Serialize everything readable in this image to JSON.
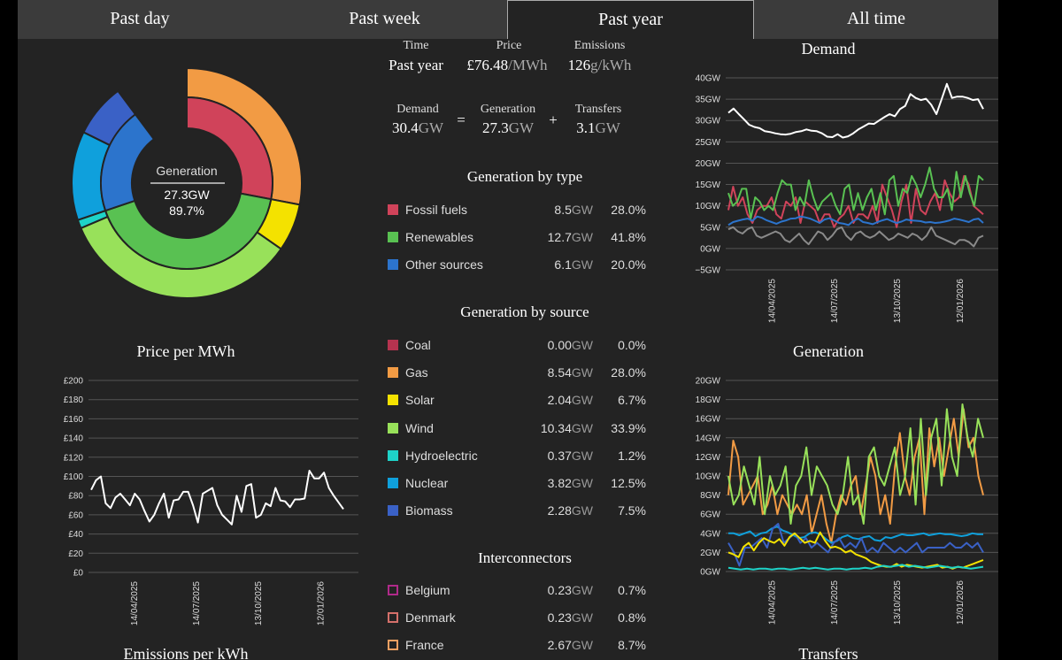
{
  "tabs": [
    {
      "label": "Past day"
    },
    {
      "label": "Past week"
    },
    {
      "label": "Past year"
    },
    {
      "label": "All time"
    }
  ],
  "summary": {
    "time_label": "Time",
    "time_value": "Past year",
    "price_label": "Price",
    "price_value": "£76.48",
    "price_unit": "/MWh",
    "emissions_label": "Emissions",
    "emissions_value": "126",
    "emissions_unit": "g/kWh",
    "demand_label": "Demand",
    "demand_value": "30.4",
    "demand_unit": "GW",
    "equals": "=",
    "generation_label": "Generation",
    "generation_value": "27.3",
    "generation_unit": "GW",
    "plus": "+",
    "transfers_label": "Transfers",
    "transfers_value": "3.1",
    "transfers_unit": "GW"
  },
  "donut": {
    "center_label": "Generation",
    "center_value": "27.3GW",
    "center_pct": "89.7%",
    "inner": [
      {
        "name": "Fossil fuels",
        "fraction": 0.28,
        "color": "#d0435a"
      },
      {
        "name": "Renewables",
        "fraction": 0.418,
        "color": "#59c152"
      },
      {
        "name": "Other sources",
        "fraction": 0.2,
        "color": "#2c74cc"
      }
    ],
    "outer": [
      {
        "name": "Coal",
        "fraction": 0.0,
        "color": "#b5334f"
      },
      {
        "name": "Gas",
        "fraction": 0.28,
        "color": "#f29b44"
      },
      {
        "name": "Solar",
        "fraction": 0.067,
        "color": "#f4e200"
      },
      {
        "name": "Wind",
        "fraction": 0.339,
        "color": "#98e15a"
      },
      {
        "name": "Hydroelectric",
        "fraction": 0.012,
        "color": "#1ed3c8"
      },
      {
        "name": "Nuclear",
        "fraction": 0.125,
        "color": "#0fa0dc"
      },
      {
        "name": "Biomass",
        "fraction": 0.075,
        "color": "#3a61c6"
      }
    ]
  },
  "by_type": {
    "title": "Generation by type",
    "rows": [
      {
        "name": "Fossil fuels",
        "value": "8.5",
        "unit": "GW",
        "pct": "28.0%",
        "color": "#d0435a"
      },
      {
        "name": "Renewables",
        "value": "12.7",
        "unit": "GW",
        "pct": "41.8%",
        "color": "#59c152"
      },
      {
        "name": "Other sources",
        "value": "6.1",
        "unit": "GW",
        "pct": "20.0%",
        "color": "#2c74cc"
      }
    ]
  },
  "by_source": {
    "title": "Generation by source",
    "rows": [
      {
        "name": "Coal",
        "value": "0.00",
        "unit": "GW",
        "pct": "0.0%",
        "color": "#b5334f"
      },
      {
        "name": "Gas",
        "value": "8.54",
        "unit": "GW",
        "pct": "28.0%",
        "color": "#f29b44"
      },
      {
        "name": "Solar",
        "value": "2.04",
        "unit": "GW",
        "pct": "6.7%",
        "color": "#f4e200"
      },
      {
        "name": "Wind",
        "value": "10.34",
        "unit": "GW",
        "pct": "33.9%",
        "color": "#98e15a"
      },
      {
        "name": "Hydroelectric",
        "value": "0.37",
        "unit": "GW",
        "pct": "1.2%",
        "color": "#1ed3c8"
      },
      {
        "name": "Nuclear",
        "value": "3.82",
        "unit": "GW",
        "pct": "12.5%",
        "color": "#0fa0dc"
      },
      {
        "name": "Biomass",
        "value": "2.28",
        "unit": "GW",
        "pct": "7.5%",
        "color": "#3a61c6"
      }
    ]
  },
  "interconnectors": {
    "title": "Interconnectors",
    "rows": [
      {
        "name": "Belgium",
        "value": "0.23",
        "unit": "GW",
        "pct": "0.7%",
        "color": "#b02a8a"
      },
      {
        "name": "Denmark",
        "value": "0.23",
        "unit": "GW",
        "pct": "0.8%",
        "color": "#d4706a"
      },
      {
        "name": "France",
        "value": "2.67",
        "unit": "GW",
        "pct": "8.7%",
        "color": "#f2a062"
      }
    ]
  },
  "panels": {
    "price_title": "Price per MWh",
    "emissions_title": "Emissions per kWh",
    "demand_title": "Demand",
    "generation_title": "Generation",
    "transfers_title": "Transfers"
  },
  "chart_data": [
    {
      "type": "line",
      "name": "price",
      "ylim": [
        0,
        200
      ],
      "yticks": [
        "£0",
        "£20",
        "£40",
        "£60",
        "£80",
        "£100",
        "£120",
        "£140",
        "£160",
        "£180",
        "£200"
      ],
      "xticks": [
        "14/04/2025",
        "14/07/2025",
        "13/10/2025",
        "12/01/2026"
      ],
      "series": [
        {
          "color": "#ffffff",
          "values": [
            86,
            96,
            100,
            72,
            67,
            78,
            82,
            76,
            70,
            82,
            76,
            64,
            53,
            60,
            72,
            82,
            57,
            75,
            76,
            84,
            84,
            70,
            52,
            82,
            85,
            88,
            70,
            60,
            55,
            50,
            80,
            63,
            90,
            92,
            57,
            60,
            72,
            69,
            88,
            75,
            74,
            68,
            76,
            76,
            77,
            106,
            98,
            98,
            104,
            88,
            80,
            73,
            66
          ]
        }
      ]
    },
    {
      "type": "line",
      "name": "demand",
      "ylim": [
        -5,
        40
      ],
      "yticks": [
        "−5GW",
        "0GW",
        "5GW",
        "10GW",
        "15GW",
        "20GW",
        "25GW",
        "30GW",
        "35GW",
        "40GW"
      ],
      "xticks": [
        "14/04/2025",
        "14/07/2025",
        "13/10/2025",
        "12/01/2026"
      ],
      "series": [
        {
          "color": "#ffffff",
          "values": [
            31.8,
            32.8,
            31.5,
            30.3,
            29.0,
            28.5,
            28.2,
            27.5,
            27.3,
            27.0,
            26.8,
            26.7,
            26.9,
            27.3,
            27.5,
            27.9,
            27.6,
            27.5,
            27.0,
            26.2,
            26.1,
            26.8,
            26.0,
            26.3,
            27.0,
            27.9,
            28.6,
            29.3,
            29.2,
            30.0,
            30.8,
            31.5,
            31.0,
            32.7,
            33.4,
            36.2,
            35.3,
            34.8,
            35.1,
            33.7,
            31.5,
            35.0,
            38.6,
            35.3,
            35.6,
            35.6,
            35.3,
            34.8,
            35.0,
            32.7
          ]
        },
        {
          "color": "#d0435a",
          "values": [
            9,
            14.5,
            10,
            12,
            8,
            6,
            9,
            10,
            10,
            12,
            8,
            7,
            11,
            10,
            12,
            6,
            11,
            10,
            9,
            6,
            8,
            8,
            5,
            7,
            8,
            10,
            6,
            8,
            8,
            7,
            10,
            6,
            15,
            12,
            9,
            5,
            11,
            15,
            6,
            14,
            9,
            8,
            11,
            13,
            9,
            16,
            13,
            11,
            12,
            17,
            15,
            10,
            9,
            8
          ]
        },
        {
          "color": "#59c152",
          "values": [
            13,
            10,
            11,
            14,
            14,
            7,
            12,
            11,
            9,
            10,
            9,
            13,
            16,
            15,
            15,
            9,
            12,
            10,
            16,
            12,
            9,
            11,
            12,
            13,
            10,
            8,
            14,
            15,
            9,
            13,
            9,
            12,
            14,
            9,
            13,
            8,
            16,
            17,
            10,
            14,
            13,
            17,
            15,
            12,
            15,
            19,
            14,
            12,
            12,
            14,
            9,
            18,
            12,
            17,
            13,
            10,
            17,
            16
          ]
        },
        {
          "color": "#2c74cc",
          "values": [
            5.5,
            6.2,
            6.5,
            6.8,
            7.0,
            6.5,
            7.5,
            7.2,
            6.6,
            6.2,
            5.8,
            6.3,
            6.6,
            7.0,
            7.1,
            7.5,
            7.3,
            7.0,
            6.5,
            6.0,
            6.8,
            7.1,
            6.6,
            6.0,
            5.8,
            5.5,
            6.5,
            7.0,
            6.2,
            6.0,
            5.7,
            6.2,
            6.6,
            6.9,
            6.4,
            6.0,
            6.3,
            6.8,
            6.6,
            6.5,
            6.4,
            6.1,
            6.2,
            6.0,
            6.1,
            6.3,
            6.6,
            7.0,
            6.8,
            6.5,
            6.2,
            6.8,
            7.0,
            6.0
          ]
        },
        {
          "color": "#8a8a8a",
          "values": [
            4.5,
            5.0,
            4.0,
            3.5,
            4.5,
            5.0,
            3.0,
            2.5,
            3.0,
            3.5,
            4.0,
            3.5,
            2.0,
            1.5,
            2.5,
            3.5,
            2.0,
            1.0,
            2.5,
            4.0,
            3.5,
            2.0,
            3.0,
            4.5,
            5.0,
            3.0,
            2.0,
            3.5,
            4.0,
            3.0,
            2.5,
            3.0,
            4.0,
            3.0,
            2.0,
            2.5,
            3.5,
            3.0,
            2.5,
            3.5,
            3.0,
            2.0,
            3.0,
            5.0,
            3.0,
            2.5,
            2.0,
            1.5,
            1.0,
            2.0,
            2.0,
            1.5,
            0.5,
            2.5,
            3.0
          ]
        }
      ]
    },
    {
      "type": "line",
      "name": "generation",
      "ylim": [
        0,
        20
      ],
      "yticks": [
        "0GW",
        "2GW",
        "4GW",
        "6GW",
        "8GW",
        "10GW",
        "12GW",
        "14GW",
        "16GW",
        "18GW",
        "20GW"
      ],
      "xticks": [
        "14/04/2025",
        "14/07/2025",
        "13/10/2025",
        "12/01/2026"
      ],
      "series": [
        {
          "name": "Gas",
          "color": "#f29b44",
          "values": [
            8,
            13.7,
            12,
            7,
            8,
            9,
            10,
            6,
            7,
            9,
            6,
            8,
            7,
            6,
            7,
            6,
            8,
            4,
            6,
            8,
            5,
            3,
            6,
            8,
            7,
            9,
            10,
            6,
            9,
            12,
            10,
            6,
            8,
            5,
            11,
            14.5,
            10,
            8,
            12,
            14,
            6,
            15,
            11,
            14,
            10,
            13,
            16,
            12,
            17,
            13,
            14,
            10,
            8
          ]
        },
        {
          "name": "Wind",
          "color": "#98e15a",
          "values": [
            10,
            7,
            8,
            11,
            9,
            7,
            12,
            6,
            10,
            8,
            9,
            11,
            5,
            9,
            10,
            13,
            8,
            11,
            10,
            9,
            7,
            6,
            8,
            12,
            7,
            8,
            5,
            12,
            13,
            10,
            9,
            11,
            13,
            8,
            10,
            15,
            7,
            16,
            8,
            14,
            16,
            9,
            17,
            12,
            10,
            17.5,
            14,
            12,
            16,
            14
          ]
        },
        {
          "name": "Nuclear",
          "color": "#0fa0dc",
          "values": [
            4,
            4,
            3.8,
            4,
            4.2,
            3.7,
            4.0,
            4.1,
            4.5,
            4.7,
            4.3,
            4.1,
            3.8,
            3.5,
            3.6,
            4.0,
            4.1,
            3.9,
            3.4,
            3.0,
            3.2,
            3.6,
            3.8,
            3.5,
            3.4,
            3.6,
            3.7,
            3.3,
            3.2,
            3.6,
            3.5,
            3.7,
            3.9,
            3.8,
            3.8,
            3.9,
            4.0,
            3.8,
            3.9,
            4.0,
            3.9,
            3.9,
            3.8,
            3.7,
            3.8,
            4.0,
            3.9,
            3.9
          ]
        },
        {
          "name": "Biomass",
          "color": "#3a61c6",
          "values": [
            3.0,
            2.0,
            0.6,
            2.5,
            2.5,
            3.0,
            3.5,
            2.5,
            4.5,
            5.0,
            3.0,
            3.5,
            4.0,
            3.0,
            3.5,
            2.5,
            3.0,
            2.5,
            2.0,
            3.0,
            3.5,
            2.5,
            3.0,
            2.5,
            3.5,
            2.0,
            2.5,
            2.0,
            3.0,
            2.5,
            2.0,
            2.5,
            2.0,
            2.5,
            3.0,
            2.0,
            2.5,
            2.5,
            2.5,
            2.5,
            3.0,
            2.5,
            2.5,
            3.0,
            2.5,
            3.0,
            2.0
          ]
        },
        {
          "name": "Solar",
          "color": "#f4e200",
          "values": [
            2.0,
            1.8,
            1.5,
            2.6,
            3.0,
            2.2,
            3.0,
            3.5,
            3.2,
            3.0,
            3.4,
            2.7,
            3.6,
            4.0,
            3.5,
            3.0,
            3.2,
            3.0,
            4.1,
            3.2,
            2.5,
            2.6,
            2.4,
            2.0,
            2.2,
            1.8,
            1.6,
            1.4,
            1.0,
            0.8,
            0.6,
            0.5,
            0.5,
            0.8,
            0.5,
            0.7,
            0.6,
            0.5,
            0.4,
            0.5,
            0.6,
            0.7,
            0.4,
            0.5,
            0.3,
            0.5,
            0.4,
            0.6,
            0.8,
            1.0,
            1.2
          ]
        },
        {
          "name": "Hydroelectric",
          "color": "#1ed3c8",
          "values": [
            0.4,
            0.3,
            0.2,
            0.3,
            0.2,
            0.3,
            0.3,
            0.2,
            0.3,
            0.3,
            0.2,
            0.3,
            0.4,
            0.3,
            0.4,
            0.3,
            0.2,
            0.3,
            0.3,
            0.2,
            0.3,
            0.3,
            0.4,
            0.3,
            0.5,
            0.6,
            0.5,
            0.6,
            0.7,
            0.5,
            0.6,
            0.5,
            0.4,
            0.5,
            0.6,
            0.5,
            0.4,
            0.5,
            0.4,
            0.3,
            0.4,
            0.5
          ]
        }
      ]
    }
  ]
}
